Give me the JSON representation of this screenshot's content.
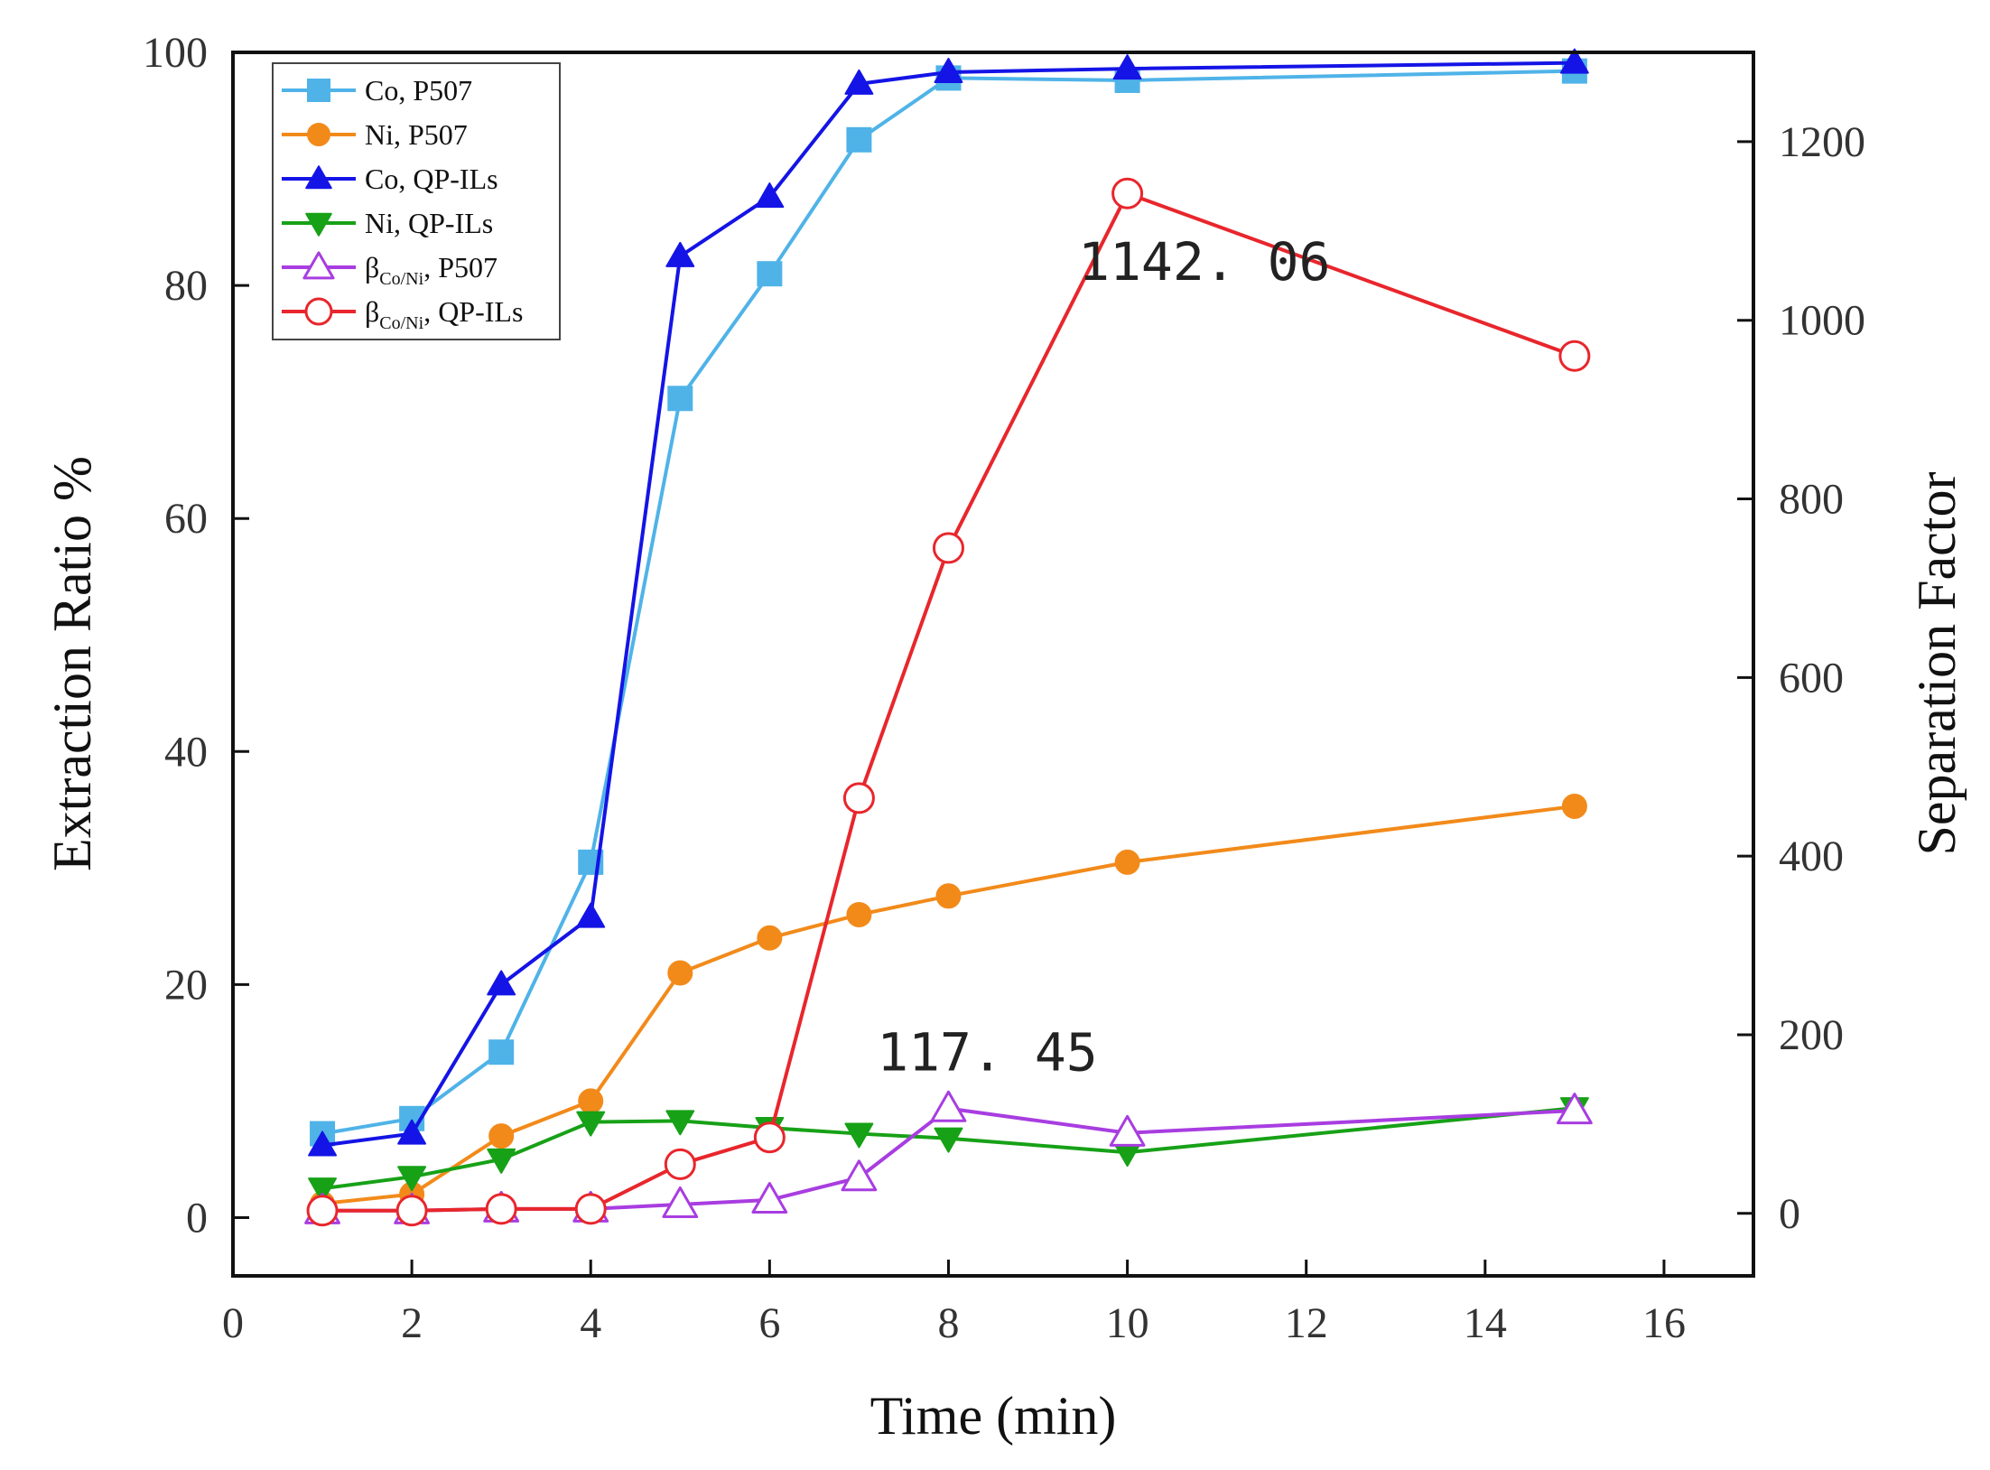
{
  "chart_data": {
    "type": "line",
    "title": "",
    "xlabel": "Time (min)",
    "ylabel": "Extraction Ratio %",
    "y2label": "Separation Factor",
    "xlim": [
      0,
      17
    ],
    "ylim": [
      -5,
      100
    ],
    "y2lim": [
      -70,
      1300
    ],
    "xticks": [
      0,
      2,
      4,
      6,
      8,
      10,
      12,
      14,
      16
    ],
    "yticks": [
      0,
      20,
      40,
      60,
      80,
      100
    ],
    "y2ticks": [
      0,
      200,
      400,
      600,
      800,
      1000,
      1200
    ],
    "grid": false,
    "legend_position": "top-left",
    "series": [
      {
        "name": "Co, P507",
        "legend_main": "Co, P507",
        "legend_sub": "",
        "legend_suffix": "",
        "axis": "left",
        "color": "#4fb3e8",
        "marker": "square",
        "filled": true,
        "x": [
          1,
          2,
          3,
          4,
          5,
          6,
          7,
          8,
          10,
          15
        ],
        "values": [
          7.2,
          8.5,
          14.2,
          30.5,
          70.3,
          81.0,
          92.5,
          97.8,
          97.6,
          98.4
        ]
      },
      {
        "name": "Ni, P507",
        "legend_main": "Ni, P507",
        "legend_sub": "",
        "legend_suffix": "",
        "axis": "left",
        "color": "#f28a1a",
        "marker": "circle",
        "filled": true,
        "x": [
          1,
          2,
          3,
          4,
          5,
          6,
          7,
          8,
          10,
          15
        ],
        "values": [
          1.2,
          2.0,
          7.0,
          10.0,
          21.0,
          24.0,
          26.0,
          27.6,
          30.5,
          35.3
        ]
      },
      {
        "name": "Co, QP-ILs",
        "legend_main": "Co, QP-ILs",
        "legend_sub": "",
        "legend_suffix": "",
        "axis": "left",
        "color": "#1414e6",
        "marker": "triangle-up",
        "filled": true,
        "x": [
          1,
          2,
          3,
          4,
          5,
          6,
          7,
          8,
          10,
          15
        ],
        "values": [
          6.2,
          7.2,
          20.0,
          25.8,
          82.5,
          87.6,
          97.3,
          98.3,
          98.6,
          99.1
        ]
      },
      {
        "name": "Ni, QP-ILs",
        "legend_main": "Ni,  QP-ILs",
        "legend_sub": "",
        "legend_suffix": "",
        "axis": "left",
        "color": "#17a117",
        "marker": "triangle-down",
        "filled": true,
        "x": [
          1,
          2,
          3,
          4,
          5,
          6,
          7,
          8,
          10,
          15
        ],
        "values": [
          2.5,
          3.5,
          5.0,
          8.2,
          8.3,
          7.7,
          7.2,
          6.8,
          5.6,
          9.4
        ]
      },
      {
        "name": "βCo/Ni, P507",
        "legend_main": "β",
        "legend_sub": "Co/Ni",
        "legend_suffix": ", P507",
        "axis": "right",
        "color": "#a83de0",
        "marker": "triangle-up",
        "filled": false,
        "x": [
          1,
          2,
          3,
          4,
          5,
          6,
          7,
          8,
          10,
          15
        ],
        "values": [
          3,
          3,
          5,
          5,
          10,
          15,
          40,
          117.45,
          90,
          115
        ]
      },
      {
        "name": "βCo/Ni, QP-ILs",
        "legend_main": "β",
        "legend_sub": "Co/Ni",
        "legend_suffix": ", QP-ILs",
        "axis": "right",
        "color": "#e8262c",
        "marker": "circle",
        "filled": false,
        "x": [
          1,
          2,
          3,
          4,
          5,
          6,
          7,
          8,
          10,
          15
        ],
        "values": [
          3,
          3,
          5,
          5,
          55,
          85,
          465,
          745,
          1142.06,
          960
        ]
      }
    ],
    "annotations": [
      {
        "text": "1142. 06",
        "x": 9.45,
        "y2": 1045
      },
      {
        "text": "117. 45",
        "x": 7.2,
        "y2": 160
      }
    ]
  }
}
